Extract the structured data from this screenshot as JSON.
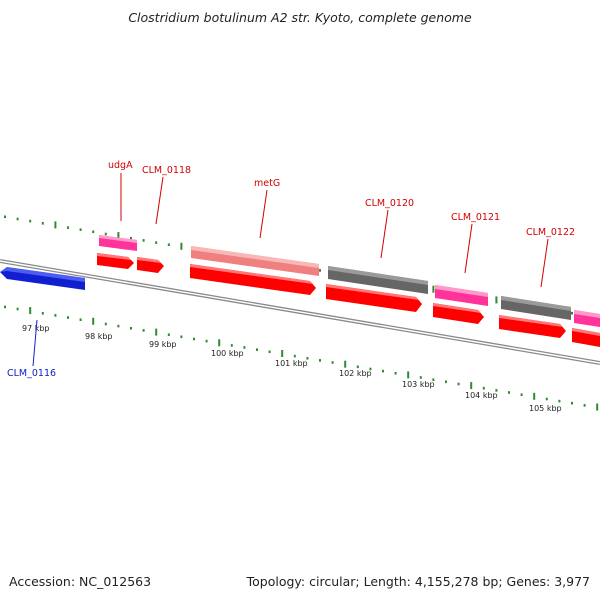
{
  "title": "Clostridium botulinum A2 str. Kyoto, complete genome",
  "footer": {
    "accession": "Accession: NC_012563",
    "summary": "Topology: circular; Length: 4,155,278 bp; Genes: 3,977"
  },
  "colors": {
    "backbone": "#8a8a8a",
    "tick": "#2e8b2e",
    "cds": "#ff0000",
    "rna": "#ff3399",
    "pseudo": "#666666",
    "metg_track": "#f08080",
    "reverse_gene": "#1020d0",
    "label_fwd": "#d40000",
    "label_rev": "#1020c8"
  },
  "ruler": {
    "labels": [
      "97 kbp",
      "98 kbp",
      "99 kbp",
      "100 kbp",
      "101 kbp",
      "102 kbp",
      "103 kbp",
      "104 kbp",
      "105 kbp"
    ]
  },
  "genes": {
    "labels": [
      {
        "text": "udgA",
        "strand": "forward"
      },
      {
        "text": "CLM_0118",
        "strand": "forward"
      },
      {
        "text": "metG",
        "strand": "forward"
      },
      {
        "text": "CLM_0120",
        "strand": "forward"
      },
      {
        "text": "CLM_0121",
        "strand": "forward"
      },
      {
        "text": "CLM_0122",
        "strand": "forward"
      },
      {
        "text": "CLM_0116",
        "strand": "reverse"
      }
    ]
  }
}
